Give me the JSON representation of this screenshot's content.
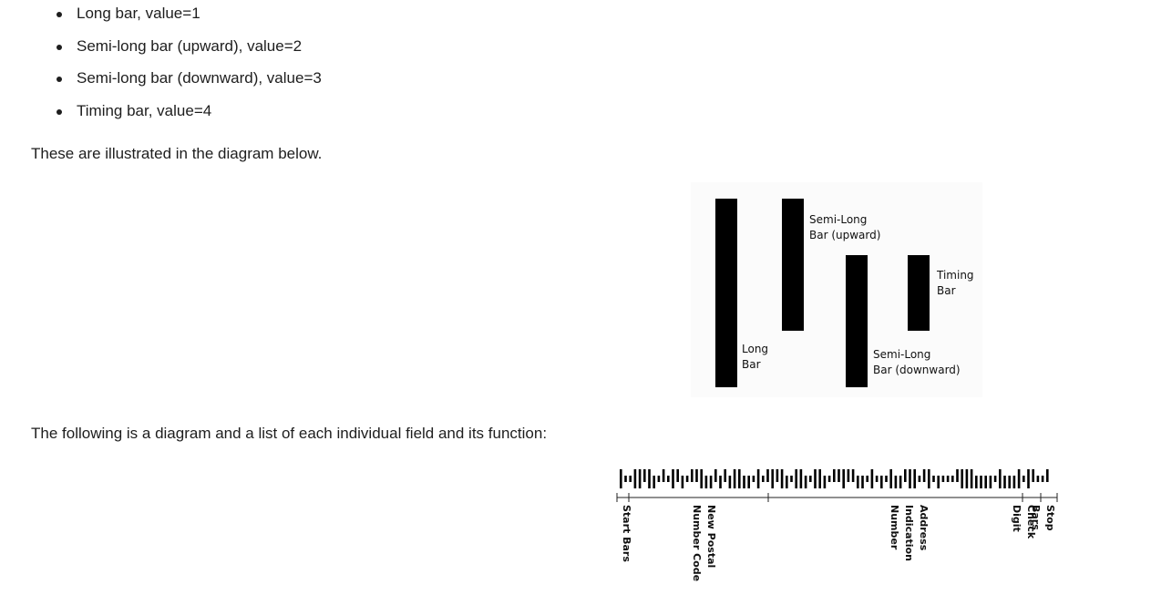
{
  "bullets": [
    "Long bar, value=1",
    "Semi-long bar (upward), value=2",
    "Semi-long bar (downward), value=3",
    "Timing bar, value=4"
  ],
  "paragraphs": {
    "illustrated": "These are illustrated in the diagram below.",
    "fields_intro": "The following is a diagram and a list of each individual field and its function:"
  },
  "bar_diagram": {
    "long": "Long\nBar",
    "semi_up": "Semi-Long\nBar (upward)",
    "semi_down": "Semi-Long\nBar (downward)",
    "timing": "Timing\nBar"
  },
  "field_diagram": {
    "bars": "1441121342412342213323231133414212134113411342212233414341332114214344421113333413331412442",
    "labels": {
      "start": "Start Bars",
      "postal": "New Postal\nNumber Code",
      "address": "Address\nIndication\nNumber",
      "check": "Check Digit",
      "stop": "Stop Bars"
    }
  }
}
